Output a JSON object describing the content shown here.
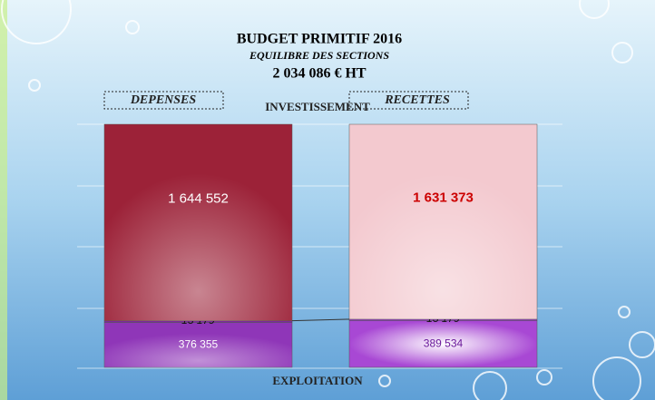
{
  "chart_data": {
    "type": "stacked-bar",
    "title": "BUDGET PRIMITIF 2016",
    "subtitle": "EQUILIBRE DES SECTIONS",
    "total_label": "2 034 086 € HT",
    "categories": [
      "DEPENSES",
      "RECETTES"
    ],
    "series": [
      {
        "name": "EXPLOITATION",
        "colors": [
          "#8f36b8",
          "#a848d4"
        ],
        "label_colors": [
          "#ffffff",
          "#6a1a9a"
        ],
        "values": [
          376355,
          389534
        ],
        "value_labels": [
          "376 355",
          "389 534"
        ]
      },
      {
        "colors": [
          "#7a2a9a",
          "#9a3fc4"
        ],
        "label_colors": [
          "#111111",
          "#111111"
        ],
        "values": [
          13179,
          13179
        ],
        "value_labels": [
          "13 179",
          "13 179"
        ]
      },
      {
        "name": "INVESTISSEMENT",
        "colors": [
          "#9c2238",
          "#f3c9cf"
        ],
        "label_colors": [
          "#ffffff",
          "#cc0000"
        ],
        "values": [
          1644552,
          1631373
        ],
        "value_labels": [
          "1 644 552",
          "1 631 373"
        ]
      }
    ]
  }
}
